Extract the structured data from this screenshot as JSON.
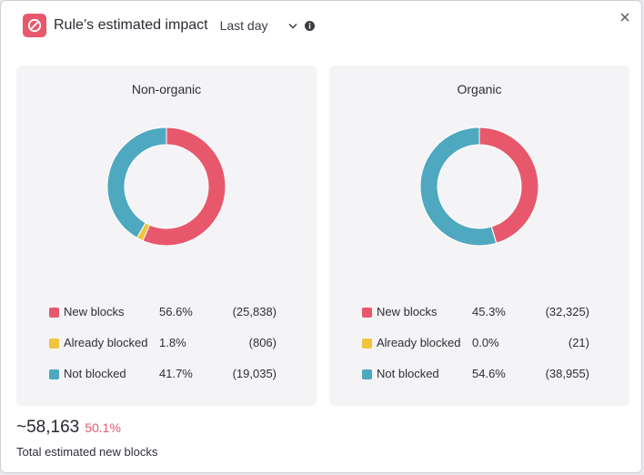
{
  "header": {
    "title": "Rule’s estimated impact",
    "period": "Last day",
    "icons": {
      "rule": "block-icon",
      "dropdown": "chevron-down-icon",
      "info": "info-icon",
      "close": "close-icon"
    }
  },
  "colors": {
    "new_blocks": "#e8586d",
    "already_blocked": "#f2c43d",
    "not_blocked": "#4ea8bf",
    "accent": "#e35b6d"
  },
  "panels": [
    {
      "title": "Non-organic",
      "legend": [
        {
          "label": "New blocks",
          "percent": "56.6%",
          "count": "(25,838)"
        },
        {
          "label": "Already blocked",
          "percent": "1.8%",
          "count": "(806)"
        },
        {
          "label": "Not blocked",
          "percent": "41.7%",
          "count": "(19,035)"
        }
      ]
    },
    {
      "title": "Organic",
      "legend": [
        {
          "label": "New blocks",
          "percent": "45.3%",
          "count": "(32,325)"
        },
        {
          "label": "Already blocked",
          "percent": "0.0%",
          "count": "(21)"
        },
        {
          "label": "Not blocked",
          "percent": "54.6%",
          "count": "(38,955)"
        }
      ]
    }
  ],
  "chart_data": [
    {
      "type": "pie",
      "title": "Non-organic",
      "categories": [
        "New blocks",
        "Already blocked",
        "Not blocked"
      ],
      "values": [
        25838,
        806,
        19035
      ],
      "percentages": [
        56.6,
        1.8,
        41.7
      ]
    },
    {
      "type": "pie",
      "title": "Organic",
      "categories": [
        "New blocks",
        "Already blocked",
        "Not blocked"
      ],
      "values": [
        32325,
        21,
        38955
      ],
      "percentages": [
        45.3,
        0.0,
        54.6
      ]
    }
  ],
  "total": {
    "value": "~58,163",
    "percent": "50.1%",
    "caption": "Total estimated new blocks"
  }
}
